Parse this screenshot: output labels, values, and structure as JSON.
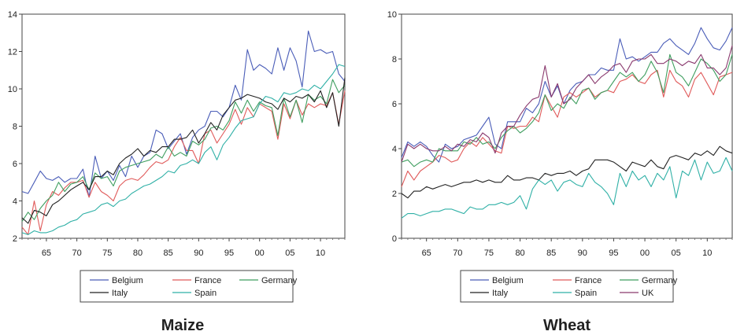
{
  "chart_data": [
    {
      "type": "line",
      "caption": "Maize",
      "x": [
        61,
        62,
        63,
        64,
        65,
        66,
        67,
        68,
        69,
        70,
        71,
        72,
        73,
        74,
        75,
        76,
        77,
        78,
        79,
        80,
        81,
        82,
        83,
        84,
        85,
        86,
        87,
        88,
        89,
        90,
        91,
        92,
        93,
        94,
        95,
        96,
        97,
        98,
        99,
        100,
        101,
        102,
        103,
        104,
        105,
        106,
        107,
        108,
        109,
        110,
        111,
        112,
        113,
        114
      ],
      "x_ticks": [
        "65",
        "70",
        "75",
        "80",
        "85",
        "90",
        "95",
        "00",
        "05",
        "10"
      ],
      "x_tick_values": [
        65,
        70,
        75,
        80,
        85,
        90,
        95,
        100,
        105,
        110
      ],
      "xlim": [
        61,
        114
      ],
      "ylim": [
        2,
        14
      ],
      "y_ticks": [
        "2",
        "4",
        "6",
        "8",
        "10",
        "12",
        "14"
      ],
      "legend": [
        "Belgium",
        "France",
        "Germany",
        "Italy",
        "Spain"
      ],
      "series": [
        {
          "name": "Belgium",
          "color": "#4a5db8",
          "values": [
            4.5,
            4.4,
            5.0,
            5.6,
            5.2,
            5.1,
            5.3,
            5.0,
            5.2,
            5.2,
            5.7,
            4.2,
            6.4,
            5.2,
            5.6,
            5.1,
            5.9,
            5.3,
            6.4,
            5.8,
            6.4,
            6.6,
            7.8,
            7.6,
            6.8,
            7.2,
            7.6,
            6.5,
            7.4,
            7.8,
            8.0,
            8.8,
            8.8,
            8.5,
            9.0,
            10.2,
            9.4,
            12.1,
            11.0,
            11.3,
            11.1,
            10.8,
            12.2,
            11.0,
            12.2,
            11.5,
            10.1,
            13.1,
            12.0,
            12.1,
            11.9,
            12.0,
            10.8,
            10.4
          ]
        },
        {
          "name": "France",
          "color": "#e05a5a",
          "values": [
            2.6,
            2.2,
            4.0,
            2.4,
            3.8,
            4.5,
            4.3,
            4.7,
            5.0,
            5.0,
            5.1,
            4.2,
            5.0,
            4.5,
            4.3,
            4.0,
            4.8,
            5.1,
            5.2,
            5.1,
            5.4,
            5.8,
            6.1,
            6.0,
            6.2,
            6.9,
            7.4,
            6.7,
            6.7,
            6.0,
            7.6,
            7.8,
            7.1,
            7.6,
            8.1,
            8.9,
            8.1,
            9.0,
            8.5,
            9.2,
            9.0,
            8.8,
            7.3,
            9.2,
            8.4,
            9.4,
            8.6,
            9.2,
            9.0,
            9.2,
            9.1,
            9.8,
            8.1,
            9.9
          ]
        },
        {
          "name": "Germany",
          "color": "#3f9e5f",
          "values": [
            2.9,
            3.4,
            3.0,
            3.6,
            4.0,
            4.3,
            5.0,
            4.5,
            4.9,
            5.0,
            5.3,
            4.6,
            5.5,
            5.2,
            5.3,
            4.8,
            5.6,
            5.8,
            5.9,
            6.0,
            6.1,
            6.2,
            6.5,
            6.3,
            6.9,
            6.4,
            6.6,
            6.4,
            7.2,
            7.0,
            7.3,
            7.9,
            8.0,
            7.8,
            8.3,
            9.3,
            8.7,
            9.4,
            8.8,
            9.3,
            9.1,
            9.0,
            7.5,
            9.5,
            8.5,
            9.4,
            8.2,
            9.7,
            9.4,
            9.6,
            9.2,
            10.5,
            9.8,
            10.2
          ]
        },
        {
          "name": "Italy",
          "color": "#222222",
          "values": [
            3.1,
            2.8,
            3.5,
            3.4,
            3.2,
            3.8,
            4.0,
            4.3,
            4.6,
            4.8,
            5.0,
            4.6,
            5.3,
            5.3,
            5.6,
            5.4,
            6.0,
            6.3,
            6.5,
            6.8,
            6.4,
            6.7,
            6.6,
            6.9,
            6.9,
            7.3,
            7.3,
            7.4,
            7.8,
            7.1,
            7.6,
            8.2,
            7.8,
            8.6,
            9.0,
            9.4,
            9.5,
            9.7,
            9.6,
            9.5,
            9.3,
            9.2,
            8.9,
            9.5,
            9.3,
            9.6,
            9.5,
            9.7,
            9.3,
            9.9,
            9.0,
            9.8,
            8.0,
            10.6
          ]
        },
        {
          "name": "Spain",
          "color": "#2fb0a6",
          "values": [
            2.3,
            2.2,
            2.4,
            2.3,
            2.3,
            2.4,
            2.6,
            2.7,
            2.9,
            3.0,
            3.3,
            3.4,
            3.5,
            3.8,
            3.9,
            3.7,
            4.0,
            4.1,
            4.4,
            4.6,
            4.8,
            4.9,
            5.1,
            5.3,
            5.6,
            5.5,
            5.9,
            6.0,
            6.2,
            6.0,
            6.6,
            6.9,
            6.2,
            7.0,
            7.4,
            7.9,
            8.3,
            8.4,
            8.5,
            9.2,
            9.6,
            9.5,
            9.3,
            9.8,
            9.7,
            9.8,
            10.0,
            9.9,
            10.2,
            10.0,
            10.4,
            10.8,
            11.3,
            11.2
          ]
        }
      ]
    },
    {
      "type": "line",
      "caption": "Wheat",
      "x": [
        61,
        62,
        63,
        64,
        65,
        66,
        67,
        68,
        69,
        70,
        71,
        72,
        73,
        74,
        75,
        76,
        77,
        78,
        79,
        80,
        81,
        82,
        83,
        84,
        85,
        86,
        87,
        88,
        89,
        90,
        91,
        92,
        93,
        94,
        95,
        96,
        97,
        98,
        99,
        100,
        101,
        102,
        103,
        104,
        105,
        106,
        107,
        108,
        109,
        110,
        111,
        112,
        113,
        114
      ],
      "x_ticks": [
        "65",
        "70",
        "75",
        "80",
        "85",
        "90",
        "95",
        "00",
        "05",
        "10"
      ],
      "x_tick_values": [
        65,
        70,
        75,
        80,
        85,
        90,
        95,
        100,
        105,
        110
      ],
      "xlim": [
        61,
        114
      ],
      "ylim": [
        0,
        10
      ],
      "y_ticks": [
        "0",
        "2",
        "4",
        "6",
        "8",
        "10"
      ],
      "legend": [
        "Belgium",
        "France",
        "Germany",
        "Italy",
        "Spain",
        "UK"
      ],
      "series": [
        {
          "name": "Belgium",
          "color": "#4a5db8",
          "values": [
            3.6,
            4.3,
            4.1,
            4.3,
            4.1,
            3.7,
            3.4,
            4.2,
            4.0,
            4.1,
            4.4,
            4.5,
            4.6,
            5.0,
            5.4,
            4.2,
            4.0,
            5.2,
            5.2,
            5.2,
            5.8,
            5.6,
            6.0,
            7.0,
            6.3,
            6.8,
            6.0,
            6.6,
            6.9,
            7.0,
            7.3,
            7.3,
            7.6,
            7.5,
            7.5,
            8.9,
            8.0,
            8.1,
            7.9,
            8.1,
            8.3,
            8.3,
            8.7,
            8.9,
            8.6,
            8.4,
            8.2,
            8.7,
            9.4,
            8.9,
            8.5,
            8.4,
            8.8,
            9.4
          ]
        },
        {
          "name": "France",
          "color": "#e05a5a",
          "values": [
            2.3,
            3.0,
            2.6,
            3.0,
            3.2,
            3.4,
            3.7,
            3.6,
            3.4,
            3.5,
            4.0,
            4.3,
            4.1,
            4.5,
            4.2,
            3.9,
            3.8,
            5.0,
            4.9,
            5.0,
            5.0,
            5.4,
            5.2,
            6.4,
            5.9,
            5.4,
            6.3,
            6.5,
            6.3,
            6.5,
            6.7,
            6.3,
            6.5,
            6.6,
            6.5,
            7.0,
            7.1,
            7.3,
            7.0,
            6.9,
            7.3,
            7.5,
            6.3,
            7.5,
            7.0,
            6.8,
            6.3,
            7.1,
            7.4,
            6.9,
            6.4,
            7.2,
            7.3,
            7.4
          ]
        },
        {
          "name": "Germany",
          "color": "#3f9e5f",
          "values": [
            3.4,
            3.5,
            3.2,
            3.4,
            3.5,
            3.4,
            4.0,
            3.9,
            3.9,
            3.9,
            4.3,
            4.2,
            4.5,
            4.2,
            4.3,
            4.0,
            4.5,
            4.8,
            5.0,
            4.7,
            4.9,
            5.2,
            5.6,
            6.4,
            5.7,
            6.0,
            5.8,
            6.3,
            6.0,
            6.6,
            6.7,
            6.2,
            6.5,
            6.6,
            7.0,
            7.4,
            7.2,
            7.4,
            7.0,
            7.3,
            7.9,
            7.4,
            6.5,
            8.2,
            7.4,
            7.2,
            6.8,
            7.4,
            8.0,
            7.8,
            7.5,
            7.0,
            7.3,
            8.2
          ]
        },
        {
          "name": "Italy",
          "color": "#222222",
          "values": [
            2.0,
            1.8,
            2.1,
            2.1,
            2.3,
            2.2,
            2.3,
            2.4,
            2.3,
            2.4,
            2.5,
            2.5,
            2.6,
            2.5,
            2.6,
            2.5,
            2.5,
            2.8,
            2.6,
            2.6,
            2.7,
            2.7,
            2.6,
            2.9,
            2.8,
            2.9,
            2.9,
            3.0,
            2.8,
            3.0,
            3.1,
            3.5,
            3.5,
            3.5,
            3.4,
            3.2,
            3.0,
            3.4,
            3.3,
            3.2,
            3.5,
            3.2,
            3.1,
            3.6,
            3.7,
            3.6,
            3.5,
            3.8,
            3.7,
            3.9,
            3.7,
            4.1,
            3.9,
            3.8
          ]
        },
        {
          "name": "Spain",
          "color": "#2fb0a6",
          "values": [
            0.9,
            1.1,
            1.1,
            1.0,
            1.1,
            1.2,
            1.2,
            1.3,
            1.3,
            1.2,
            1.1,
            1.4,
            1.3,
            1.3,
            1.5,
            1.5,
            1.6,
            1.5,
            1.6,
            1.9,
            1.3,
            2.2,
            2.6,
            2.4,
            2.6,
            2.1,
            2.5,
            2.6,
            2.4,
            2.3,
            2.9,
            2.5,
            2.3,
            2.0,
            1.5,
            2.9,
            2.3,
            3.0,
            2.6,
            2.8,
            2.3,
            2.9,
            2.6,
            3.2,
            1.8,
            3.0,
            2.8,
            3.5,
            2.6,
            3.4,
            2.9,
            3.0,
            3.6,
            3.0
          ]
        },
        {
          "name": "UK",
          "color": "#8a3a6e",
          "values": [
            3.4,
            4.2,
            4.0,
            4.2,
            4.0,
            3.9,
            3.9,
            4.1,
            3.9,
            4.2,
            4.1,
            4.4,
            4.3,
            4.7,
            4.5,
            3.8,
            4.7,
            5.0,
            5.0,
            5.5,
            5.9,
            6.2,
            6.3,
            7.7,
            6.3,
            6.9,
            6.0,
            6.2,
            6.7,
            7.0,
            7.3,
            6.9,
            7.2,
            7.4,
            7.7,
            7.8,
            7.4,
            7.9,
            8.0,
            8.0,
            8.2,
            7.8,
            7.8,
            8.0,
            7.9,
            7.7,
            7.9,
            7.8,
            8.2,
            7.6,
            7.6,
            7.3,
            7.6,
            8.6
          ]
        }
      ]
    }
  ]
}
